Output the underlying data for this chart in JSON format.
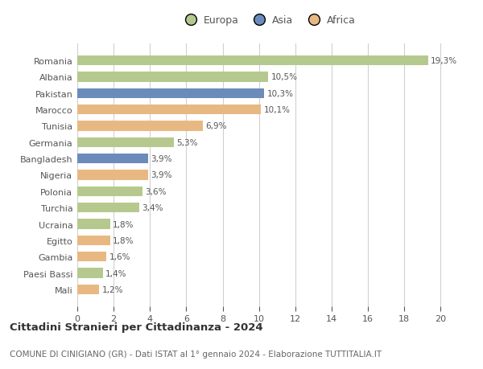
{
  "countries": [
    "Romania",
    "Albania",
    "Pakistan",
    "Marocco",
    "Tunisia",
    "Germania",
    "Bangladesh",
    "Nigeria",
    "Polonia",
    "Turchia",
    "Ucraina",
    "Egitto",
    "Gambia",
    "Paesi Bassi",
    "Mali"
  ],
  "values": [
    19.3,
    10.5,
    10.3,
    10.1,
    6.9,
    5.3,
    3.9,
    3.9,
    3.6,
    3.4,
    1.8,
    1.8,
    1.6,
    1.4,
    1.2
  ],
  "labels": [
    "19,3%",
    "10,5%",
    "10,3%",
    "10,1%",
    "6,9%",
    "5,3%",
    "3,9%",
    "3,9%",
    "3,6%",
    "3,4%",
    "1,8%",
    "1,8%",
    "1,6%",
    "1,4%",
    "1,2%"
  ],
  "continents": [
    "Europa",
    "Europa",
    "Asia",
    "Africa",
    "Africa",
    "Europa",
    "Asia",
    "Africa",
    "Europa",
    "Europa",
    "Europa",
    "Africa",
    "Africa",
    "Europa",
    "Africa"
  ],
  "colors": {
    "Europa": "#b5c98e",
    "Asia": "#6b8cba",
    "Africa": "#e8b882"
  },
  "title1": "Cittadini Stranieri per Cittadinanza - 2024",
  "title2": "COMUNE DI CINIGIANO (GR) - Dati ISTAT al 1° gennaio 2024 - Elaborazione TUTTITALIA.IT",
  "xlim": [
    0,
    21
  ],
  "xticks": [
    0,
    2,
    4,
    6,
    8,
    10,
    12,
    14,
    16,
    18,
    20
  ],
  "background_color": "#ffffff",
  "grid_color": "#d0d0d0",
  "bar_height": 0.6,
  "figure_width": 6.0,
  "figure_height": 4.6,
  "label_fontsize": 7.5,
  "ytick_fontsize": 8.0,
  "xtick_fontsize": 8.0,
  "legend_fontsize": 9.0,
  "title1_fontsize": 9.5,
  "title2_fontsize": 7.5,
  "text_color": "#555555",
  "title1_color": "#333333",
  "title2_color": "#666666"
}
